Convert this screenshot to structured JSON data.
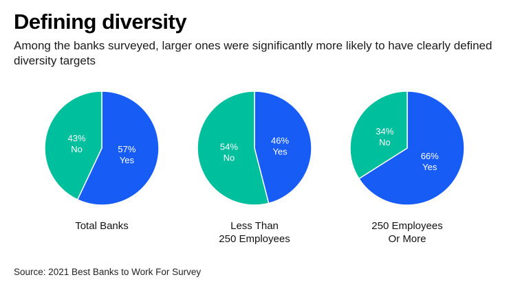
{
  "header": {
    "title": "Defining diversity",
    "subtitle": "Among the banks surveyed, larger ones were significantly more likely to have clearly defined diversity targets"
  },
  "colors": {
    "yes": "#175cf5",
    "no": "#00bf9c",
    "divider": "#ffffff"
  },
  "chart_data": {
    "type": "pie",
    "title": "Defining diversity",
    "subtitle": "Among the banks surveyed, larger ones were significantly more likely to have clearly defined diversity targets",
    "legend": "none (labels inside slices)",
    "pies": [
      {
        "category": "Total Banks",
        "slices": [
          {
            "label": "Yes",
            "value": 57,
            "display": "57%"
          },
          {
            "label": "No",
            "value": 43,
            "display": "43%"
          }
        ]
      },
      {
        "category": "Less Than\n250 Employees",
        "slices": [
          {
            "label": "Yes",
            "value": 46,
            "display": "46%"
          },
          {
            "label": "No",
            "value": 54,
            "display": "54%"
          }
        ]
      },
      {
        "category": "250 Employees\nOr More",
        "slices": [
          {
            "label": "Yes",
            "value": 66,
            "display": "66%"
          },
          {
            "label": "No",
            "value": 34,
            "display": "34%"
          }
        ]
      }
    ]
  },
  "footer": {
    "source": "Source: 2021 Best Banks to Work For Survey"
  }
}
